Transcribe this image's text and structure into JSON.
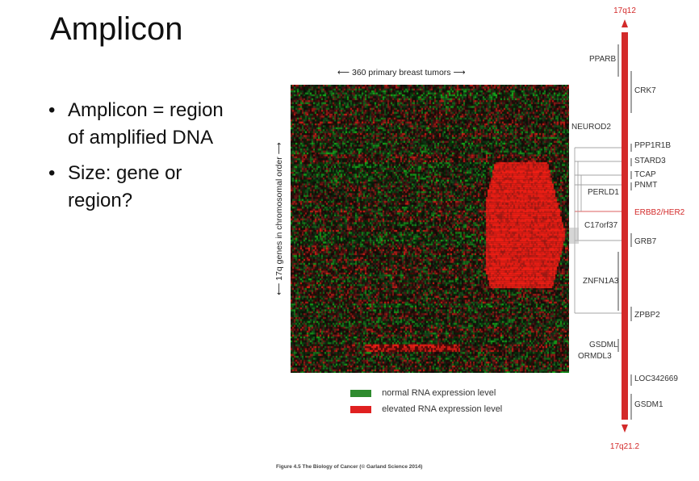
{
  "slide": {
    "title": "Amplicon",
    "bullets": [
      "Amplicon = region of amplified DNA",
      "Size: gene or region?"
    ]
  },
  "figure": {
    "x_caption": "360 primary breast tumors",
    "y_caption": "17q genes in chromosomal order",
    "legend": [
      {
        "label": "normal RNA expression level",
        "color": "#2e8b2e"
      },
      {
        "label": "elevated RNA expression level",
        "color": "#e02020"
      }
    ],
    "caption": "Figure 4.5  The Biology of Cancer (© Garland Science 2014)",
    "chromosome": {
      "top_band": "17q12",
      "bottom_band": "17q21.2",
      "color": "#d32a2a",
      "highlight_gene": "ERBB2/HER2",
      "genes": [
        "PPARB",
        "CRK7",
        "NEUROD2",
        "PPP1R1B",
        "STARD3",
        "TCAP",
        "PNMT",
        "PERLD1",
        "ERBB2/HER2",
        "C17orf37",
        "GRB7",
        "ZNFN1A3",
        "ZPBP2",
        "GSDML",
        "ORMDL3",
        "LOC342669",
        "GSDM1"
      ]
    }
  }
}
